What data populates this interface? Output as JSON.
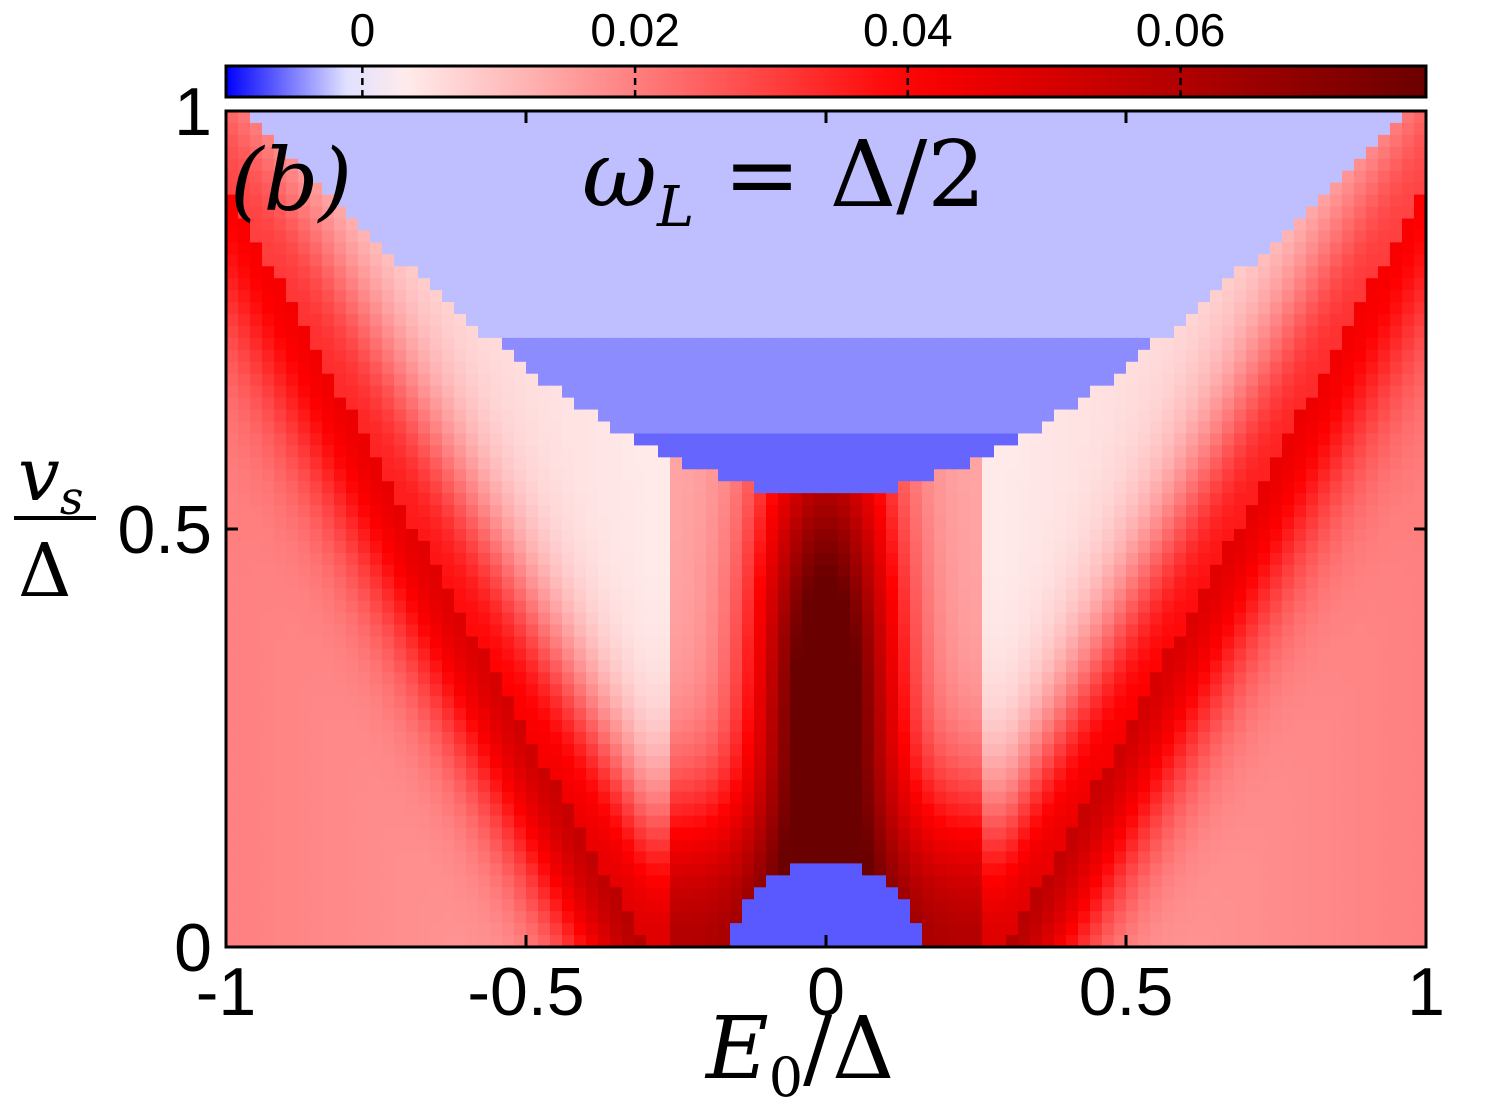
{
  "chart_data": {
    "type": "heatmap",
    "panel_label": "(b)",
    "title": "ωL = Δ/2",
    "title_parts": {
      "omega": "ω",
      "sub": "L",
      "rest": " = Δ/2"
    },
    "xlabel": "E0/Δ",
    "xlabel_parts": {
      "main": "E",
      "sub": "0",
      "rest": "/Δ"
    },
    "ylabel": "vs/Δ",
    "ylabel_parts": {
      "num": "v",
      "num_sub": "s",
      "den": "Δ"
    },
    "xlim": [
      -1,
      1
    ],
    "ylim": [
      0,
      1
    ],
    "xticks": [
      -1,
      -0.5,
      0,
      0.5,
      1
    ],
    "xtick_labels": [
      "-1",
      "-0.5",
      "0",
      "0.5",
      "1"
    ],
    "yticks": [
      0,
      0.5,
      1
    ],
    "ytick_labels": [
      "0",
      "0.5",
      "1"
    ],
    "colorbar": {
      "location": "top",
      "range": [
        -0.01,
        0.078
      ],
      "ticks": [
        0,
        0.02,
        0.04,
        0.06
      ],
      "tick_labels": [
        "0",
        "0.02",
        "0.04",
        "0.06"
      ],
      "colormap": "blue-white-red",
      "colors": {
        "min": "#0000ff",
        "zero": "#ffffff",
        "mid": "#ff0000",
        "max": "#6b0000"
      }
    },
    "regions": {
      "upper_negative_value": -0.004,
      "lower_negative_value": -0.006,
      "peak_value": 0.078,
      "peak_location": {
        "x": 0,
        "y": 0.3
      }
    }
  }
}
